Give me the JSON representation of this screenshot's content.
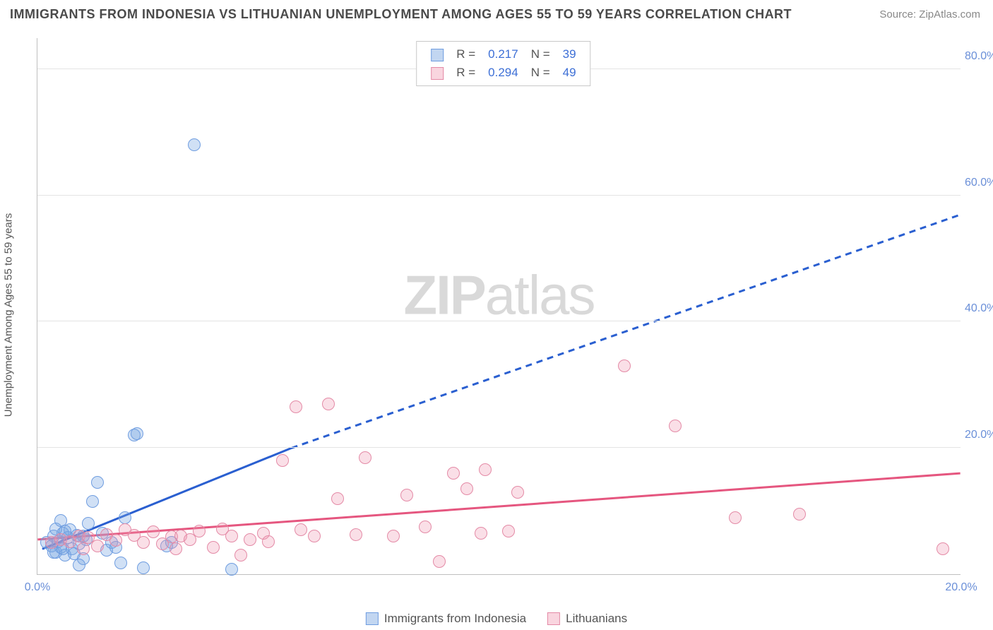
{
  "title": "IMMIGRANTS FROM INDONESIA VS LITHUANIAN UNEMPLOYMENT AMONG AGES 55 TO 59 YEARS CORRELATION CHART",
  "source_label": "Source: ",
  "source_link_text": "ZipAtlas.com",
  "watermark": {
    "bold": "ZIP",
    "rest": "atlas"
  },
  "ylabel": "Unemployment Among Ages 55 to 59 years",
  "chart": {
    "type": "scatter",
    "xlim": [
      0,
      20
    ],
    "ylim": [
      0,
      85
    ],
    "xticks": [
      0,
      20
    ],
    "xtick_labels": [
      "0.0%",
      "20.0%"
    ],
    "yticks": [
      20,
      40,
      60,
      80
    ],
    "ytick_labels": [
      "20.0%",
      "40.0%",
      "60.0%",
      "80.0%"
    ],
    "grid_color": "#e4e4e4",
    "axis_color": "#bfbfbf",
    "background_color": "#ffffff",
    "marker_size": 18,
    "series": [
      {
        "name": "Immigrants from Indonesia",
        "color_fill": "rgba(120,165,225,0.35)",
        "color_stroke": "#6f9de0",
        "trend": {
          "color": "#2a5fd0",
          "width": 3,
          "solid": {
            "x1": 0.1,
            "y1": 4.0,
            "x2": 5.5,
            "y2": 20.0
          },
          "dashed": {
            "x1": 5.5,
            "y1": 20.0,
            "x2": 20.0,
            "y2": 57.0
          }
        },
        "R": "0.217",
        "N": "39",
        "points": [
          [
            0.2,
            5.0
          ],
          [
            0.3,
            4.5
          ],
          [
            0.35,
            6.0
          ],
          [
            0.4,
            3.5
          ],
          [
            0.45,
            5.2
          ],
          [
            0.5,
            4.2
          ],
          [
            0.55,
            6.5
          ],
          [
            0.6,
            3.0
          ],
          [
            0.65,
            5.8
          ],
          [
            0.7,
            7.0
          ],
          [
            0.75,
            4.0
          ],
          [
            0.8,
            3.2
          ],
          [
            0.85,
            6.2
          ],
          [
            0.9,
            4.8
          ],
          [
            1.0,
            2.5
          ],
          [
            1.05,
            5.5
          ],
          [
            1.1,
            8.0
          ],
          [
            1.2,
            11.5
          ],
          [
            1.3,
            14.5
          ],
          [
            1.4,
            6.5
          ],
          [
            1.5,
            3.8
          ],
          [
            1.6,
            5.0
          ],
          [
            1.7,
            4.2
          ],
          [
            1.9,
            9.0
          ],
          [
            2.1,
            22.0
          ],
          [
            2.15,
            22.3
          ],
          [
            2.3,
            1.0
          ],
          [
            2.8,
            4.5
          ],
          [
            2.9,
            5.0
          ],
          [
            3.4,
            68.0
          ],
          [
            4.2,
            0.8
          ],
          [
            0.9,
            1.5
          ],
          [
            0.4,
            7.2
          ],
          [
            0.5,
            8.5
          ],
          [
            0.6,
            6.8
          ],
          [
            0.35,
            3.5
          ],
          [
            0.55,
            4.0
          ],
          [
            1.0,
            6.0
          ],
          [
            1.8,
            1.8
          ]
        ]
      },
      {
        "name": "Lithuanians",
        "color_fill": "rgba(240,150,175,0.30)",
        "color_stroke": "#e48aa6",
        "trend": {
          "color": "#e5567f",
          "width": 3,
          "solid": {
            "x1": 0.0,
            "y1": 5.5,
            "x2": 20.0,
            "y2": 16.0
          }
        },
        "R": "0.294",
        "N": "49",
        "points": [
          [
            0.3,
            5.0
          ],
          [
            0.5,
            5.5
          ],
          [
            0.7,
            5.2
          ],
          [
            0.9,
            6.0
          ],
          [
            1.1,
            5.8
          ],
          [
            1.3,
            4.5
          ],
          [
            1.5,
            6.3
          ],
          [
            1.7,
            5.4
          ],
          [
            1.9,
            7.0
          ],
          [
            2.1,
            6.2
          ],
          [
            2.3,
            5.0
          ],
          [
            2.5,
            6.7
          ],
          [
            2.7,
            4.8
          ],
          [
            2.9,
            5.9
          ],
          [
            3.1,
            6.0
          ],
          [
            3.3,
            5.5
          ],
          [
            3.5,
            6.8
          ],
          [
            3.8,
            4.2
          ],
          [
            4.0,
            7.2
          ],
          [
            4.2,
            6.0
          ],
          [
            4.6,
            5.5
          ],
          [
            4.9,
            6.5
          ],
          [
            5.3,
            18.0
          ],
          [
            5.7,
            7.0
          ],
          [
            6.0,
            6.0
          ],
          [
            6.3,
            27.0
          ],
          [
            5.6,
            26.5
          ],
          [
            6.5,
            12.0
          ],
          [
            6.9,
            6.3
          ],
          [
            7.1,
            18.5
          ],
          [
            7.7,
            6.0
          ],
          [
            8.0,
            12.5
          ],
          [
            8.4,
            7.5
          ],
          [
            8.7,
            2.0
          ],
          [
            9.0,
            16.0
          ],
          [
            9.3,
            13.5
          ],
          [
            9.7,
            16.5
          ],
          [
            9.6,
            6.5
          ],
          [
            10.2,
            6.8
          ],
          [
            10.4,
            13.0
          ],
          [
            12.7,
            33.0
          ],
          [
            13.8,
            23.5
          ],
          [
            15.1,
            9.0
          ],
          [
            16.5,
            9.5
          ],
          [
            19.6,
            4.0
          ],
          [
            4.4,
            3.0
          ],
          [
            3.0,
            4.0
          ],
          [
            5.0,
            5.2
          ],
          [
            1.0,
            4.0
          ]
        ]
      }
    ]
  },
  "legend_top": {
    "rows": [
      {
        "swatch": "blue",
        "R_label": "R =",
        "R": "0.217",
        "N_label": "N =",
        "N": "39"
      },
      {
        "swatch": "pink",
        "R_label": "R =",
        "R": "0.294",
        "N_label": "N =",
        "N": "49"
      }
    ]
  },
  "legend_bottom": [
    {
      "swatch": "blue",
      "label": "Immigrants from Indonesia"
    },
    {
      "swatch": "pink",
      "label": "Lithuanians"
    }
  ]
}
